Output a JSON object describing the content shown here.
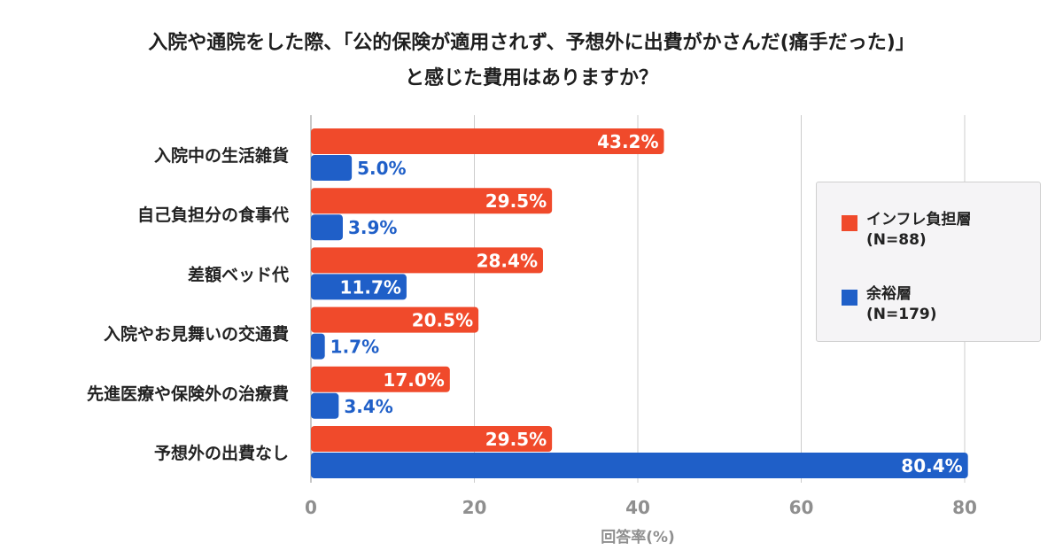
{
  "title_line1": "入院や通院をした際、「公的保険が適用されず、予想外に出費がかさんだ(痛手だった)」",
  "title_line2": "と感じた費用はありますか？",
  "colors": {
    "inflation": "#f04a2b",
    "surplus": "#1f5fc8",
    "grid": "#cccccc",
    "tick": "#8f8f8f"
  },
  "legend": {
    "items": [
      {
        "line1": "インフレ負担層",
        "line2": "(N=88)",
        "color": "#f04a2b"
      },
      {
        "line1": "余裕層",
        "line2": "(N=179)",
        "color": "#1f5fc8"
      }
    ]
  },
  "chart_data": {
    "type": "bar",
    "orientation": "horizontal",
    "categories": [
      "入院中の生活雑貨",
      "自己負担分の食事代",
      "差額ベッド代",
      "入院やお見舞いの交通費",
      "先進医療や保険外の治療費",
      "予想外の出費なし"
    ],
    "series": [
      {
        "name": "インフレ負担層(N=88)",
        "values": [
          43.2,
          29.5,
          28.4,
          20.5,
          17.0,
          29.5
        ],
        "labels": [
          "43.2%",
          "29.5%",
          "28.4%",
          "20.5%",
          "17.0%",
          "29.5%"
        ],
        "color": "#f04a2b"
      },
      {
        "name": "余裕層(N=179)",
        "values": [
          5.0,
          3.9,
          11.7,
          1.7,
          3.4,
          80.4
        ],
        "labels": [
          "5.0%",
          "3.9%",
          "11.7%",
          "1.7%",
          "3.4%",
          "80.4%"
        ],
        "color": "#1f5fc8"
      }
    ],
    "xlabel": "回答率(%)",
    "xlim": [
      0,
      80
    ],
    "xticks": [
      0,
      20,
      40,
      60,
      80
    ],
    "grid": true,
    "legend_position": "right"
  }
}
